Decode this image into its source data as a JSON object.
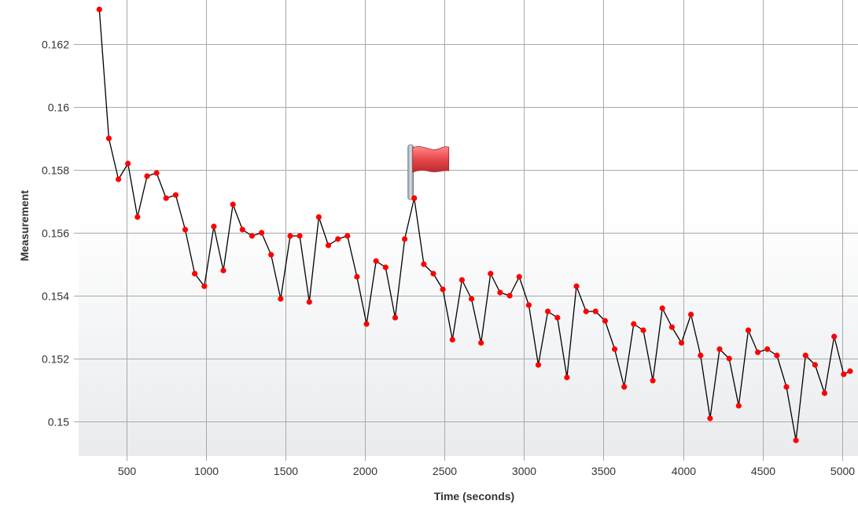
{
  "chart_data": {
    "type": "line",
    "title": "",
    "xlabel": "Time (seconds)",
    "ylabel": "Measurement",
    "xlim": [
      200,
      5100
    ],
    "ylim": [
      0.1489,
      0.1634
    ],
    "x_ticks": [
      500,
      1000,
      1500,
      2000,
      2500,
      3000,
      3500,
      4000,
      4500,
      5000
    ],
    "y_ticks": [
      0.15,
      0.152,
      0.154,
      0.156,
      0.158,
      0.16,
      0.162
    ],
    "grid": true,
    "legend": "none",
    "line_color": "#000000",
    "marker_color": "#ff0000",
    "series": [
      {
        "x": [
          330,
          390,
          450,
          510,
          570,
          630,
          690,
          750,
          810,
          870,
          930,
          990,
          1050,
          1110,
          1170,
          1230,
          1290,
          1350,
          1410,
          1470,
          1530,
          1590,
          1650,
          1710,
          1770,
          1830,
          1890,
          1950,
          2010,
          2070,
          2130,
          2190,
          2250,
          2310,
          2370,
          2430,
          2490,
          2550,
          2610,
          2670,
          2730,
          2790,
          2850,
          2910,
          2970,
          3030,
          3090,
          3150,
          3210,
          3270,
          3330,
          3390,
          3450,
          3510,
          3570,
          3630,
          3690,
          3750,
          3810,
          3870,
          3930,
          3990,
          4050,
          4110,
          4170,
          4230,
          4290,
          4350,
          4410,
          4470,
          4530,
          4590,
          4650,
          4710,
          4770,
          4830,
          4890,
          4950,
          5010,
          5050
        ],
        "values": [
          0.1631,
          0.159,
          0.1577,
          0.1582,
          0.1565,
          0.1578,
          0.1579,
          0.1571,
          0.1572,
          0.1561,
          0.1547,
          0.1543,
          0.1562,
          0.1548,
          0.1569,
          0.1561,
          0.1559,
          0.156,
          0.1553,
          0.1539,
          0.1559,
          0.1559,
          0.1538,
          0.1565,
          0.1556,
          0.1558,
          0.1559,
          0.1546,
          0.1531,
          0.1551,
          0.1549,
          0.1533,
          0.1558,
          0.1571,
          0.155,
          0.1547,
          0.1542,
          0.1526,
          0.1545,
          0.1539,
          0.1525,
          0.1547,
          0.1541,
          0.154,
          0.1546,
          0.1537,
          0.1518,
          0.1535,
          0.1533,
          0.1514,
          0.1543,
          0.1535,
          0.1535,
          0.1532,
          0.1523,
          0.1511,
          0.1531,
          0.1529,
          0.1513,
          0.1536,
          0.153,
          0.1525,
          0.1534,
          0.1521,
          0.1501,
          0.1523,
          0.152,
          0.1505,
          0.1529,
          0.1522,
          0.1523,
          0.1521,
          0.1511,
          0.1494,
          0.1521,
          0.1518,
          0.1509,
          0.1527,
          0.1515,
          0.1516
        ]
      }
    ],
    "annotations": [
      {
        "type": "flag-marker",
        "icon": "flag-icon",
        "color": "#e8474c",
        "x": 2310,
        "y": 0.1571
      }
    ]
  }
}
